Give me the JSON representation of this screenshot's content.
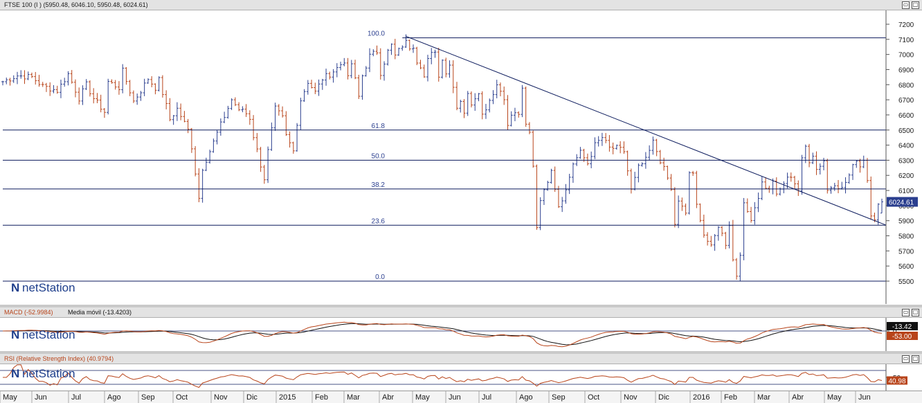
{
  "main_panel": {
    "title": "FTSE 100 (I ) (5950.48, 6046.10, 5950.48, 6024.61)",
    "restore_icon": "restore-icon",
    "maximize_icon": "maximize-icon",
    "watermark": "netStation"
  },
  "macd_panel": {
    "title_macd": "MACD (-52.9984)",
    "title_ma": "Media móvil (-13.4203)",
    "watermark": "netStation"
  },
  "rsi_panel": {
    "title": "RSI (Relative Strength Index) (40.9794)",
    "watermark": "netStation"
  },
  "chart_data": [
    {
      "type": "candlestick",
      "title": "FTSE 100 (I ) (5950.48, 6046.10, 5950.48, 6024.61)",
      "last_open": 5950.48,
      "last_high": 6046.1,
      "last_low": 5950.48,
      "last_close": 6024.61,
      "last_price_label": "6024.61",
      "y_ticks": [
        7200,
        7100,
        7000,
        6900,
        6800,
        6700,
        6600,
        6500,
        6400,
        6300,
        6200,
        6100,
        6000,
        5900,
        5800,
        5700,
        5600,
        5500
      ],
      "ylim": [
        5350,
        7250
      ],
      "colors": {
        "up": "#2b3f8f",
        "down": "#b8441a",
        "grid": "#0b1a5c",
        "price_tag": "#2b3f8f"
      },
      "x_labels": [
        "May",
        "Jun",
        "Jul",
        "Ago",
        "Sep",
        "Oct",
        "Nov",
        "Dic",
        "2015",
        "Feb",
        "Mar",
        "Abr",
        "May",
        "Jun",
        "Jul",
        "Ago",
        "Sep",
        "Oct",
        "Nov",
        "Dic",
        "2016",
        "Feb",
        "Mar",
        "Abr",
        "May",
        "Jun"
      ],
      "close_path": [
        [
          0,
          6820
        ],
        [
          4,
          6860
        ],
        [
          8,
          6850
        ],
        [
          11,
          6790
        ],
        [
          15,
          6760
        ],
        [
          18,
          6870
        ],
        [
          21,
          6710
        ],
        [
          23,
          6800
        ],
        [
          25,
          6710
        ],
        [
          28,
          6620
        ],
        [
          29,
          6820
        ],
        [
          32,
          6780
        ],
        [
          33,
          6890
        ],
        [
          36,
          6690
        ],
        [
          38,
          6760
        ],
        [
          40,
          6840
        ],
        [
          42,
          6780
        ],
        [
          43,
          6830
        ],
        [
          45,
          6660
        ],
        [
          46,
          6570
        ],
        [
          48,
          6640
        ],
        [
          51,
          6500
        ],
        [
          52,
          6390
        ],
        [
          53,
          6220
        ],
        [
          54,
          6050
        ],
        [
          55,
          6250
        ],
        [
          57,
          6360
        ],
        [
          59,
          6480
        ],
        [
          61,
          6590
        ],
        [
          63,
          6700
        ],
        [
          64,
          6670
        ],
        [
          65,
          6620
        ],
        [
          66,
          6640
        ],
        [
          68,
          6580
        ],
        [
          69,
          6460
        ],
        [
          71,
          6270
        ],
        [
          72,
          6180
        ],
        [
          73,
          6360
        ],
        [
          75,
          6640
        ],
        [
          77,
          6580
        ],
        [
          78,
          6460
        ],
        [
          80,
          6360
        ],
        [
          81,
          6550
        ],
        [
          82,
          6700
        ],
        [
          84,
          6820
        ],
        [
          86,
          6750
        ],
        [
          88,
          6840
        ],
        [
          90,
          6870
        ],
        [
          92,
          6910
        ],
        [
          94,
          6960
        ],
        [
          95,
          6840
        ],
        [
          96,
          6940
        ],
        [
          98,
          6720
        ],
        [
          99,
          6860
        ],
        [
          101,
          6990
        ],
        [
          103,
          7020
        ],
        [
          104,
          6880
        ],
        [
          106,
          7020
        ],
        [
          107,
          7060
        ],
        [
          108,
          6990
        ],
        [
          110,
          7060
        ],
        [
          111,
          7080
        ],
        [
          112,
          7050
        ],
        [
          113,
          7060
        ],
        [
          114,
          6960
        ],
        [
          115,
          6930
        ],
        [
          116,
          6850
        ],
        [
          117,
          6960
        ],
        [
          118,
          7000
        ],
        [
          119,
          7030
        ],
        [
          120,
          6850
        ],
        [
          121,
          6980
        ],
        [
          122,
          6880
        ],
        [
          123,
          6930
        ],
        [
          124,
          6800
        ],
        [
          125,
          6650
        ],
        [
          126,
          6700
        ],
        [
          127,
          6620
        ],
        [
          128,
          6730
        ],
        [
          129,
          6680
        ],
        [
          131,
          6760
        ],
        [
          132,
          6600
        ],
        [
          134,
          6700
        ],
        [
          136,
          6800
        ],
        [
          138,
          6720
        ],
        [
          139,
          6520
        ],
        [
          140,
          6600
        ],
        [
          142,
          6610
        ],
        [
          143,
          6760
        ],
        [
          144,
          6530
        ],
        [
          145,
          6480
        ],
        [
          146,
          6270
        ],
        [
          147,
          5860
        ],
        [
          148,
          6050
        ],
        [
          149,
          6090
        ],
        [
          151,
          6250
        ],
        [
          152,
          6120
        ],
        [
          153,
          6000
        ],
        [
          155,
          6100
        ],
        [
          157,
          6280
        ],
        [
          159,
          6350
        ],
        [
          161,
          6280
        ],
        [
          163,
          6400
        ],
        [
          165,
          6450
        ],
        [
          167,
          6380
        ],
        [
          169,
          6380
        ],
        [
          171,
          6360
        ],
        [
          173,
          6100
        ],
        [
          175,
          6250
        ],
        [
          177,
          6300
        ],
        [
          179,
          6420
        ],
        [
          181,
          6300
        ],
        [
          183,
          6180
        ],
        [
          184,
          6100
        ],
        [
          185,
          5880
        ],
        [
          186,
          6020
        ],
        [
          188,
          5950
        ],
        [
          189,
          6220
        ],
        [
          190,
          6200
        ],
        [
          191,
          6000
        ],
        [
          192,
          5920
        ],
        [
          193,
          5810
        ],
        [
          195,
          5720
        ],
        [
          197,
          5870
        ],
        [
          199,
          5750
        ],
        [
          200,
          5880
        ],
        [
          201,
          5640
        ],
        [
          202,
          5540
        ],
        [
          203,
          5690
        ],
        [
          204,
          6000
        ],
        [
          206,
          5920
        ],
        [
          208,
          6060
        ],
        [
          209,
          6150
        ],
        [
          211,
          6100
        ],
        [
          212,
          6170
        ],
        [
          213,
          6060
        ],
        [
          215,
          6150
        ],
        [
          217,
          6200
        ],
        [
          219,
          6100
        ],
        [
          220,
          6300
        ],
        [
          221,
          6390
        ],
        [
          222,
          6300
        ],
        [
          223,
          6340
        ],
        [
          224,
          6240
        ],
        [
          226,
          6300
        ],
        [
          227,
          6100
        ],
        [
          229,
          6150
        ],
        [
          231,
          6110
        ],
        [
          233,
          6200
        ],
        [
          235,
          6310
        ],
        [
          236,
          6260
        ],
        [
          237,
          6310
        ],
        [
          238,
          6170
        ],
        [
          239,
          5950
        ],
        [
          240,
          5920
        ],
        [
          241,
          6000
        ],
        [
          242,
          6025
        ]
      ],
      "trendline": {
        "from": {
          "day": 111,
          "price": 7120
        },
        "to": {
          "day": 242,
          "price": 5880
        }
      },
      "fibonacci": {
        "levels": [
          {
            "label": "100.0",
            "price": 7110
          },
          {
            "label": "61.8",
            "price": 6500
          },
          {
            "label": "50.0",
            "price": 6300
          },
          {
            "label": "38.2",
            "price": 6110
          },
          {
            "label": "23.6",
            "price": 5870
          },
          {
            "label": "0.0",
            "price": 5500
          }
        ]
      }
    },
    {
      "type": "line",
      "title": "MACD (-52.9984)",
      "series": [
        {
          "name": "MACD (-52.9984)",
          "last_label": "-53.00",
          "color": "#b8441a"
        },
        {
          "name": "Media móvil (-13.4203)",
          "last_label": "-13.42",
          "color": "#111111"
        }
      ],
      "y_ticks": [
        0
      ],
      "ylim": [
        -150,
        150
      ]
    },
    {
      "type": "line",
      "title": "RSI (Relative Strength Index) (40.9794)",
      "series": [
        {
          "name": "RSI (Relative Strength Index) (40.9794)",
          "last_label": "40.98",
          "color": "#b8441a"
        }
      ],
      "y_ticks": [
        50
      ],
      "ylim": [
        20,
        80
      ],
      "bands": [
        70,
        30
      ]
    }
  ]
}
